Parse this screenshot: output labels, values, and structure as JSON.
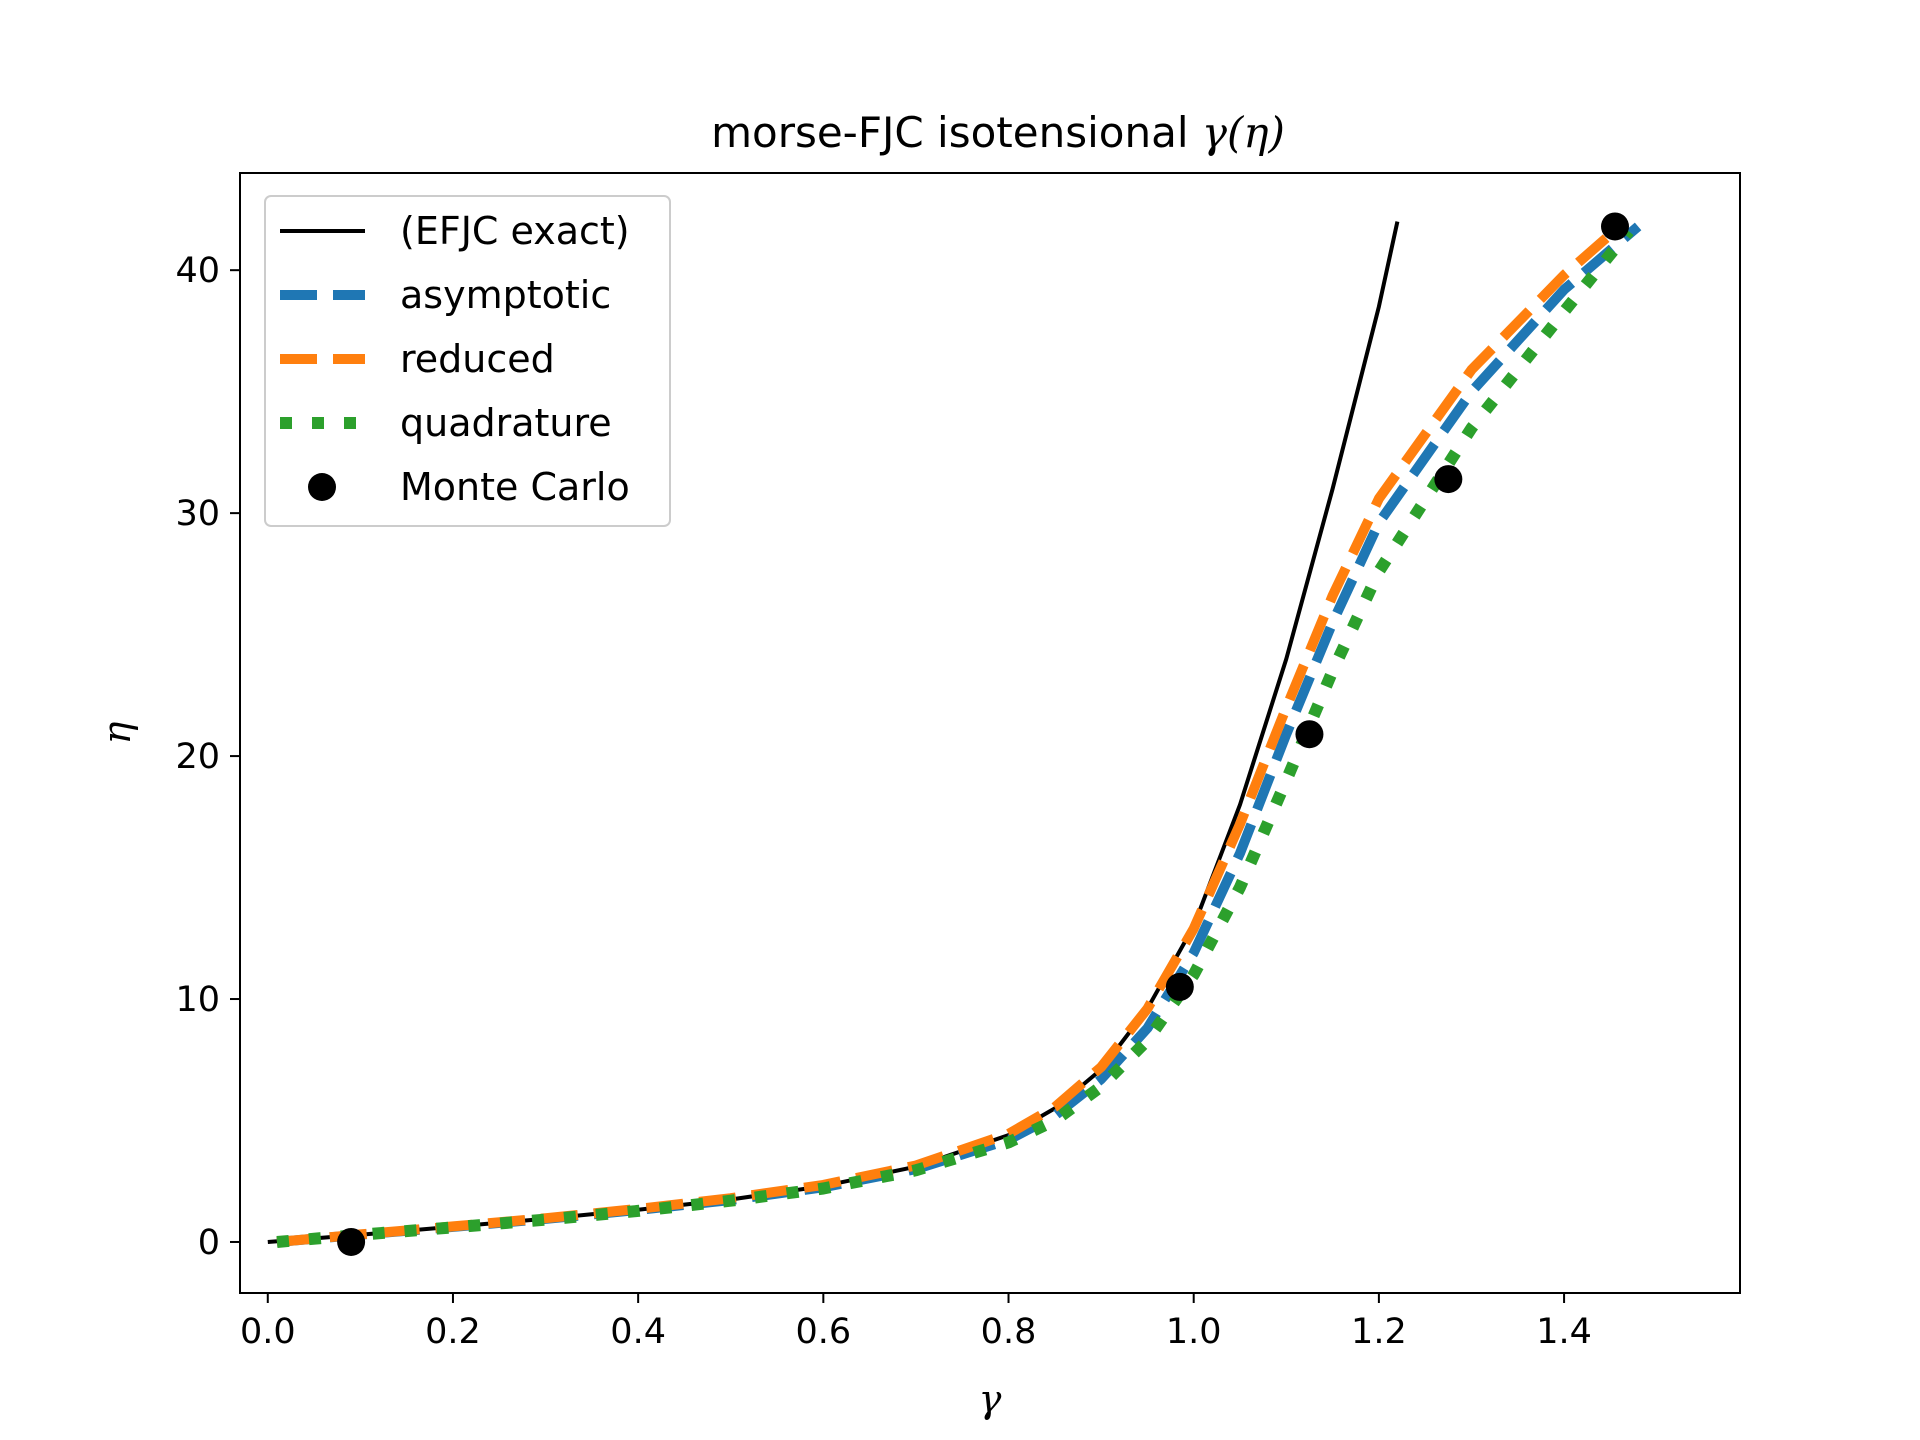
{
  "chart_data": {
    "type": "line",
    "title_prefix": "morse-FJC isotensional ",
    "title_math": "γ(η)",
    "xlabel": "γ",
    "ylabel": "η",
    "xlim": [
      -0.03,
      1.59
    ],
    "ylim": [
      -2.1,
      44.0
    ],
    "x_ticks": [
      0.0,
      0.2,
      0.4,
      0.6,
      0.8,
      1.0,
      1.2,
      1.4
    ],
    "x_tick_labels": [
      "0.0",
      "0.2",
      "0.4",
      "0.6",
      "0.8",
      "1.0",
      "1.2",
      "1.4"
    ],
    "y_ticks": [
      0,
      10,
      20,
      30,
      40
    ],
    "y_tick_labels": [
      "0",
      "10",
      "20",
      "30",
      "40"
    ],
    "grid": false,
    "legend_position": "upper-left",
    "series": [
      {
        "name": "(EFJC exact)",
        "style": "solid",
        "color": "#000000",
        "x": [
          0.0,
          0.1,
          0.2,
          0.3,
          0.4,
          0.5,
          0.6,
          0.7,
          0.8,
          0.85,
          0.9,
          0.95,
          1.0,
          1.05,
          1.1,
          1.15,
          1.2,
          1.22
        ],
        "y": [
          0.0,
          0.3,
          0.63,
          0.96,
          1.33,
          1.75,
          2.3,
          3.1,
          4.4,
          5.5,
          7.1,
          9.6,
          13.0,
          18.0,
          24.0,
          31.0,
          38.5,
          42.0
        ]
      },
      {
        "name": "asymptotic",
        "style": "dashed",
        "color": "#1f77b4",
        "x": [
          0.01,
          0.1,
          0.2,
          0.3,
          0.4,
          0.5,
          0.6,
          0.7,
          0.8,
          0.85,
          0.9,
          0.95,
          1.0,
          1.05,
          1.1,
          1.15,
          1.2,
          1.3,
          1.4,
          1.48
        ],
        "y": [
          0.0,
          0.3,
          0.62,
          0.95,
          1.32,
          1.73,
          2.25,
          3.0,
          4.2,
          5.2,
          6.7,
          8.8,
          11.9,
          16.0,
          20.9,
          25.5,
          29.6,
          35.0,
          39.2,
          41.8
        ]
      },
      {
        "name": "reduced",
        "style": "dashed",
        "color": "#ff7f0e",
        "x": [
          0.01,
          0.1,
          0.2,
          0.3,
          0.4,
          0.5,
          0.6,
          0.7,
          0.8,
          0.85,
          0.9,
          0.95,
          1.0,
          1.05,
          1.1,
          1.15,
          1.2,
          1.3,
          1.4,
          1.46
        ],
        "y": [
          0.0,
          0.31,
          0.64,
          0.98,
          1.36,
          1.8,
          2.35,
          3.15,
          4.45,
          5.55,
          7.2,
          9.6,
          12.9,
          17.2,
          22.0,
          26.6,
          30.6,
          35.9,
          39.8,
          41.8
        ]
      },
      {
        "name": "quadrature",
        "style": "dotted",
        "color": "#2ca02c",
        "x": [
          0.01,
          0.1,
          0.2,
          0.3,
          0.4,
          0.5,
          0.6,
          0.7,
          0.8,
          0.85,
          0.9,
          0.95,
          1.0,
          1.05,
          1.1,
          1.15,
          1.2,
          1.3,
          1.4,
          1.47
        ],
        "y": [
          0.0,
          0.3,
          0.6,
          0.92,
          1.28,
          1.7,
          2.2,
          2.95,
          4.1,
          5.0,
          6.4,
          8.3,
          11.0,
          14.6,
          19.0,
          23.5,
          27.6,
          33.5,
          38.3,
          41.6
        ]
      },
      {
        "name": "Monte Carlo",
        "style": "markers",
        "color": "#000000",
        "x": [
          0.09,
          0.985,
          1.125,
          1.275,
          1.455
        ],
        "y": [
          0.0,
          10.5,
          20.9,
          31.4,
          41.8
        ]
      }
    ]
  }
}
